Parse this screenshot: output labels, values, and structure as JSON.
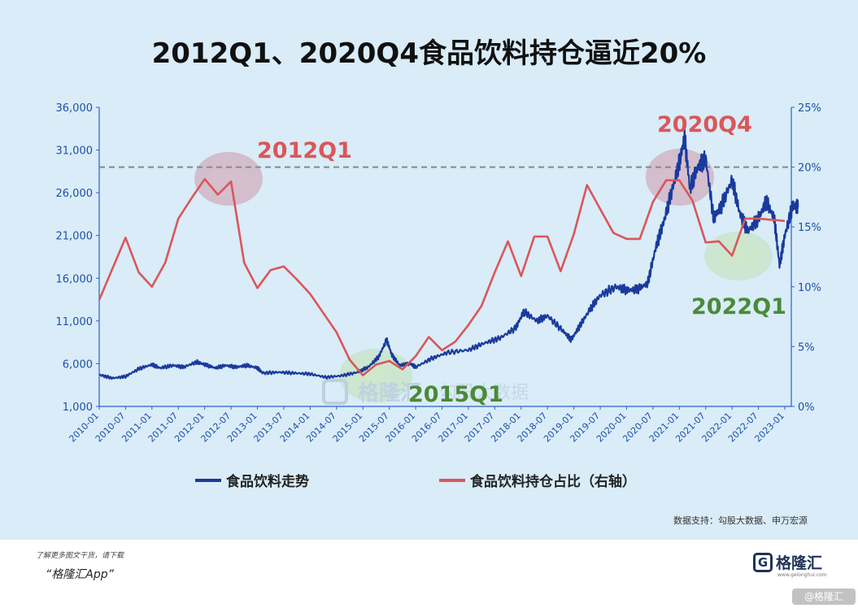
{
  "title": "2012Q1、2020Q4食品饮料持仓逼近20%",
  "chart_data": {
    "type": "line",
    "x_tick_labels": [
      "2010-01",
      "2010-07",
      "2011-01",
      "2011-07",
      "2012-01",
      "2012-07",
      "2013-01",
      "2013-07",
      "2014-01",
      "2014-07",
      "2015-01",
      "2015-07",
      "2016-01",
      "2016-07",
      "2017-01",
      "2017-07",
      "2018-01",
      "2018-07",
      "2019-01",
      "2019-07",
      "2020-01",
      "2020-07",
      "2021-01",
      "2021-07",
      "2022-01",
      "2022-07",
      "2023-01"
    ],
    "y_left": {
      "ticks": [
        "1,000",
        "6,000",
        "11,000",
        "16,000",
        "21,000",
        "26,000",
        "31,000",
        "36,000"
      ],
      "range": [
        1000,
        36000
      ]
    },
    "y_right": {
      "ticks": [
        "0%",
        "5%",
        "10%",
        "15%",
        "20%",
        "25%"
      ],
      "range": [
        0,
        25
      ]
    },
    "series": [
      {
        "name": "食品饮料走势",
        "axis": "left",
        "color": "#1a3a9c",
        "points": [
          [
            2010.0,
            4700
          ],
          [
            2010.25,
            4300
          ],
          [
            2010.5,
            4500
          ],
          [
            2010.75,
            5400
          ],
          [
            2011.0,
            5900
          ],
          [
            2011.15,
            5500
          ],
          [
            2011.4,
            5800
          ],
          [
            2011.6,
            5600
          ],
          [
            2011.85,
            6200
          ],
          [
            2012.0,
            5900
          ],
          [
            2012.2,
            5500
          ],
          [
            2012.4,
            5800
          ],
          [
            2012.6,
            5600
          ],
          [
            2012.8,
            5800
          ],
          [
            2013.0,
            5500
          ],
          [
            2013.1,
            4900
          ],
          [
            2013.4,
            5000
          ],
          [
            2013.7,
            4900
          ],
          [
            2014.0,
            4800
          ],
          [
            2014.3,
            4400
          ],
          [
            2014.6,
            4600
          ],
          [
            2014.9,
            5000
          ],
          [
            2015.1,
            5600
          ],
          [
            2015.3,
            6800
          ],
          [
            2015.45,
            8800
          ],
          [
            2015.55,
            7000
          ],
          [
            2015.7,
            5800
          ],
          [
            2015.9,
            6000
          ],
          [
            2016.0,
            5600
          ],
          [
            2016.3,
            6600
          ],
          [
            2016.6,
            7300
          ],
          [
            2017.0,
            7600
          ],
          [
            2017.3,
            8400
          ],
          [
            2017.6,
            9000
          ],
          [
            2017.9,
            10200
          ],
          [
            2018.05,
            12100
          ],
          [
            2018.3,
            11000
          ],
          [
            2018.5,
            11600
          ],
          [
            2018.8,
            9800
          ],
          [
            2018.95,
            8800
          ],
          [
            2019.1,
            10300
          ],
          [
            2019.3,
            12300
          ],
          [
            2019.5,
            14000
          ],
          [
            2019.8,
            15000
          ],
          [
            2020.0,
            14600
          ],
          [
            2020.2,
            14700
          ],
          [
            2020.4,
            15400
          ],
          [
            2020.55,
            19500
          ],
          [
            2020.7,
            22500
          ],
          [
            2020.85,
            26000
          ],
          [
            2021.0,
            29500
          ],
          [
            2021.1,
            32500
          ],
          [
            2021.2,
            26500
          ],
          [
            2021.35,
            29000
          ],
          [
            2021.5,
            30000
          ],
          [
            2021.65,
            23000
          ],
          [
            2021.8,
            24500
          ],
          [
            2022.0,
            27500
          ],
          [
            2022.15,
            23500
          ],
          [
            2022.3,
            21500
          ],
          [
            2022.5,
            23000
          ],
          [
            2022.65,
            25000
          ],
          [
            2022.8,
            23000
          ],
          [
            2022.9,
            17500
          ],
          [
            2023.0,
            21000
          ],
          [
            2023.15,
            24500
          ],
          [
            2023.25,
            24300
          ]
        ]
      },
      {
        "name": "食品饮料持仓占比（右轴）",
        "axis": "right",
        "color": "#d9575a",
        "points": [
          [
            2010.0,
            8.9
          ],
          [
            2010.5,
            14.1
          ],
          [
            2010.75,
            11.2
          ],
          [
            2011.0,
            10.0
          ],
          [
            2011.25,
            12.0
          ],
          [
            2011.5,
            15.7
          ],
          [
            2011.75,
            17.4
          ],
          [
            2012.0,
            19.0
          ],
          [
            2012.25,
            17.7
          ],
          [
            2012.5,
            18.8
          ],
          [
            2012.75,
            12.0
          ],
          [
            2013.0,
            9.9
          ],
          [
            2013.25,
            11.4
          ],
          [
            2013.5,
            11.7
          ],
          [
            2013.75,
            10.6
          ],
          [
            2014.0,
            9.4
          ],
          [
            2014.25,
            7.8
          ],
          [
            2014.5,
            6.2
          ],
          [
            2014.75,
            3.9
          ],
          [
            2015.0,
            2.6
          ],
          [
            2015.25,
            3.5
          ],
          [
            2015.5,
            3.8
          ],
          [
            2015.75,
            3.1
          ],
          [
            2016.0,
            4.2
          ],
          [
            2016.25,
            5.8
          ],
          [
            2016.5,
            4.7
          ],
          [
            2016.75,
            5.4
          ],
          [
            2017.0,
            6.8
          ],
          [
            2017.25,
            8.4
          ],
          [
            2017.5,
            11.2
          ],
          [
            2017.75,
            13.8
          ],
          [
            2018.0,
            10.9
          ],
          [
            2018.25,
            14.2
          ],
          [
            2018.5,
            14.2
          ],
          [
            2018.75,
            11.3
          ],
          [
            2019.0,
            14.4
          ],
          [
            2019.25,
            18.5
          ],
          [
            2019.5,
            16.5
          ],
          [
            2019.75,
            14.5
          ],
          [
            2020.0,
            14.0
          ],
          [
            2020.25,
            14.0
          ],
          [
            2020.5,
            17.1
          ],
          [
            2020.75,
            18.9
          ],
          [
            2021.0,
            18.9
          ],
          [
            2021.25,
            17.2
          ],
          [
            2021.5,
            13.7
          ],
          [
            2021.75,
            13.8
          ],
          [
            2022.0,
            12.6
          ],
          [
            2022.25,
            15.7
          ],
          [
            2022.5,
            15.7
          ],
          [
            2022.75,
            15.6
          ],
          [
            2023.0,
            15.5
          ]
        ]
      }
    ],
    "reference_line": {
      "axis": "right",
      "value": 20,
      "style": "dashed"
    },
    "annotations": [
      {
        "text": "2012Q1",
        "color": "#d9575a"
      },
      {
        "text": "2020Q4",
        "color": "#d9575a"
      },
      {
        "text": "2015Q1",
        "color": "#4a8a38"
      },
      {
        "text": "2022Q1",
        "color": "#4a8a38"
      }
    ],
    "grid": false,
    "legend_position": "bottom"
  },
  "legend": [
    {
      "label": "食品饮料走势",
      "color": "#1a3a9c"
    },
    {
      "label": "食品饮料持仓占比（右轴）",
      "color": "#d9575a"
    }
  ],
  "watermark_text": "格隆汇",
  "watermark_sub": "勾股大数据",
  "source": "数据支持：勾股大数据、申万宏源",
  "footer": {
    "note": "了解更多图文干货，请下载",
    "app": "“格隆汇App”",
    "brand": "格隆汇",
    "brand_logo": "G",
    "brand_url": "www.gelonghui.com",
    "badge": "@格隆汇"
  }
}
